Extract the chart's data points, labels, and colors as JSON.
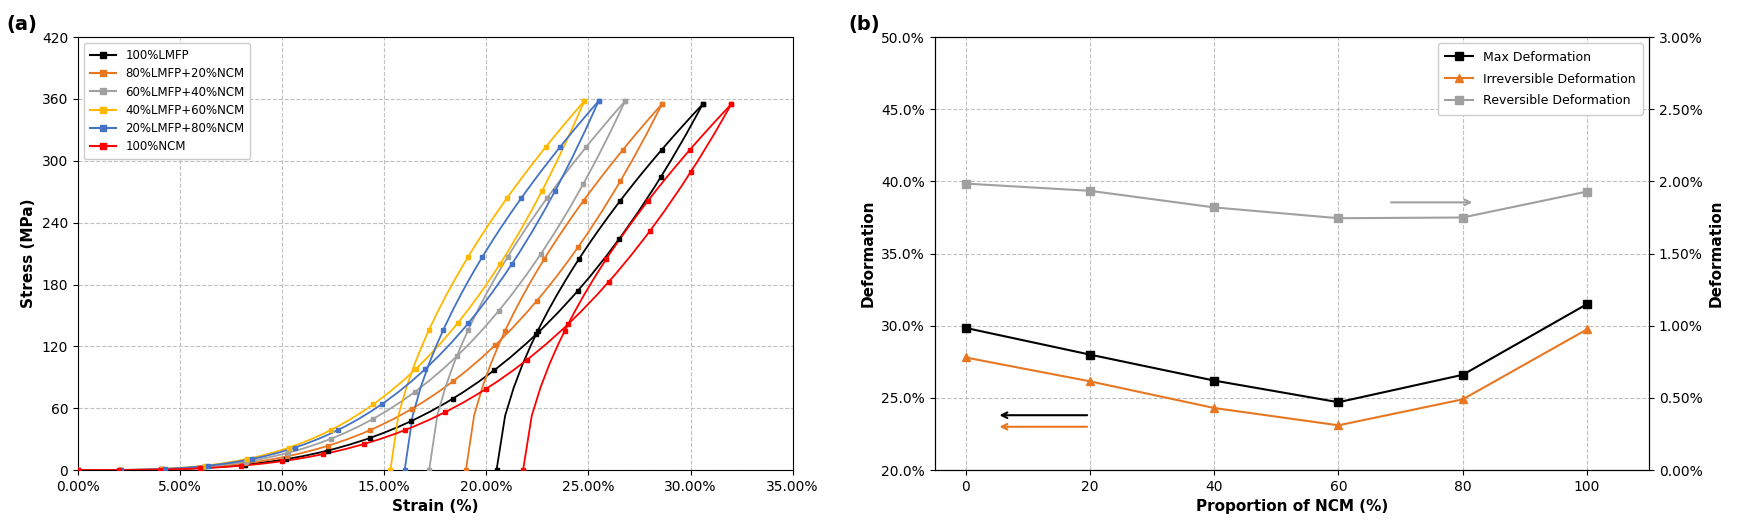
{
  "panel_a": {
    "xlabel": "Strain (%)",
    "ylabel": "Stress (MPa)",
    "ylim": [
      0,
      420
    ],
    "xlim": [
      0.0,
      0.35
    ],
    "yticks": [
      0,
      60,
      120,
      180,
      240,
      300,
      360,
      420
    ],
    "xticks": [
      0.0,
      0.05,
      0.1,
      0.15,
      0.2,
      0.25,
      0.3,
      0.35
    ],
    "curves": [
      {
        "label": "100%LMFP",
        "color": "#000000",
        "peak_strain": 0.306,
        "peak_stress": 355,
        "unload_end_strain": 0.205,
        "curve_steepness": 0.088
      },
      {
        "label": "80%LMFP+20%NCM",
        "color": "#E87722",
        "peak_strain": 0.286,
        "peak_stress": 355,
        "unload_end_strain": 0.19,
        "curve_steepness": 0.082
      },
      {
        "label": "60%LMFP+40%NCM",
        "color": "#A0A0A0",
        "peak_strain": 0.268,
        "peak_stress": 358,
        "unload_end_strain": 0.172,
        "curve_steepness": 0.076
      },
      {
        "label": "40%LMFP+60%NCM",
        "color": "#FFB800",
        "peak_strain": 0.248,
        "peak_stress": 358,
        "unload_end_strain": 0.153,
        "curve_steepness": 0.07
      },
      {
        "label": "20%LMFP+80%NCM",
        "color": "#4472C4",
        "peak_strain": 0.255,
        "peak_stress": 358,
        "unload_end_strain": 0.16,
        "curve_steepness": 0.073
      },
      {
        "label": "100%NCM",
        "color": "#FF0000",
        "peak_strain": 0.32,
        "peak_stress": 355,
        "unload_end_strain": 0.218,
        "curve_steepness": 0.093
      }
    ]
  },
  "panel_b": {
    "xlabel": "Proportion of NCM (%)",
    "ylabel_left": "Deformation",
    "ylabel_right": "Deformation",
    "xlim": [
      -5,
      110
    ],
    "ylim_left": [
      0.2,
      0.5
    ],
    "ylim_right": [
      0.0,
      0.03
    ],
    "xticks": [
      0,
      20,
      40,
      60,
      80,
      100
    ],
    "yticks_left": [
      0.2,
      0.25,
      0.3,
      0.35,
      0.4,
      0.45,
      0.5
    ],
    "yticks_right": [
      0.0,
      0.005,
      0.01,
      0.015,
      0.02,
      0.025,
      0.03
    ],
    "ncm_x": [
      0,
      20,
      40,
      60,
      80,
      100
    ],
    "max_deformation": [
      0.2985,
      0.28,
      0.262,
      0.247,
      0.266,
      0.315
    ],
    "irreversible_deformation": [
      0.278,
      0.2615,
      0.243,
      0.231,
      0.249,
      0.2975
    ],
    "reversible_deformation": [
      0.01985,
      0.01935,
      0.0182,
      0.01745,
      0.0175,
      0.0193
    ],
    "max_color": "#000000",
    "irrev_color": "#E87722",
    "rev_color": "#A0A0A0"
  }
}
